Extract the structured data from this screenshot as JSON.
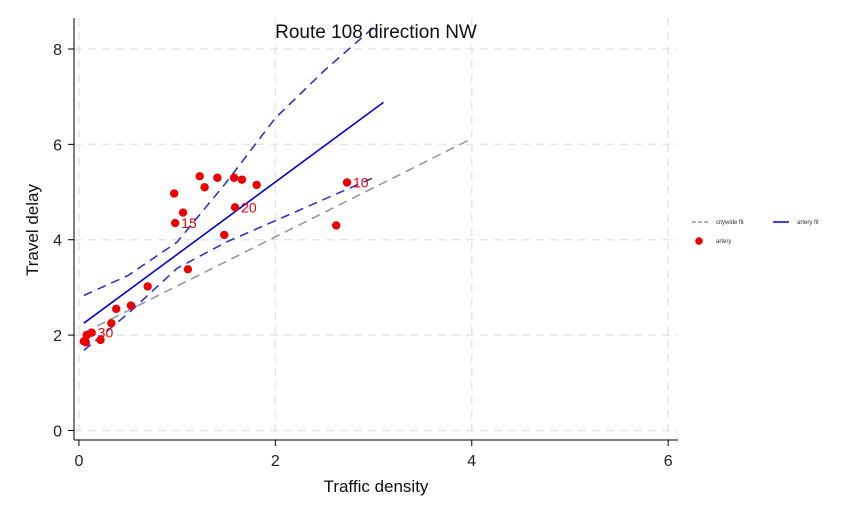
{
  "chart_data": {
    "type": "scatter",
    "title": "Route 108 direction NW",
    "xlabel": "Traffic density",
    "ylabel": "Travel delay",
    "xlim": [
      -0.05,
      6.1
    ],
    "ylim": [
      -0.2,
      8.65
    ],
    "xticks": [
      0,
      2,
      4,
      6
    ],
    "yticks": [
      0,
      2,
      4,
      6,
      8
    ],
    "grid": true,
    "legend_position": "right",
    "colors": {
      "points": "#ee0000",
      "artery_fit": "#0000dd",
      "artery_ci": "#3333cc",
      "citywide_fit": "#999999",
      "grid": "#e6e6e6"
    },
    "series": [
      {
        "name": "artery",
        "kind": "points",
        "x": [
          0.05,
          0.07,
          0.08,
          0.13,
          0.22,
          0.33,
          0.38,
          0.53,
          0.7,
          0.97,
          0.98,
          1.06,
          1.11,
          1.23,
          1.28,
          1.41,
          1.48,
          1.58,
          1.59,
          1.66,
          1.81,
          2.62,
          2.73
        ],
        "y": [
          1.87,
          1.85,
          2.0,
          2.05,
          1.9,
          2.25,
          2.55,
          2.62,
          3.02,
          4.97,
          4.35,
          4.57,
          3.38,
          5.33,
          5.1,
          5.3,
          4.1,
          5.3,
          4.68,
          5.26,
          5.15,
          4.3,
          5.2
        ]
      },
      {
        "name": "artery fit",
        "kind": "line",
        "x": [
          0.05,
          3.1
        ],
        "y": [
          2.25,
          6.88
        ]
      },
      {
        "name": "citywide fit",
        "kind": "dashed-line",
        "x": [
          0.05,
          4.0
        ],
        "y": [
          2.05,
          6.12
        ]
      }
    ],
    "ci_band": {
      "x": [
        0.05,
        0.5,
        1.0,
        1.5,
        2.0,
        2.5,
        3.0
      ],
      "upper": [
        2.83,
        3.25,
        3.95,
        5.2,
        6.55,
        7.55,
        8.45
      ],
      "lower": [
        1.68,
        2.45,
        3.4,
        3.95,
        4.4,
        4.85,
        5.3
      ]
    },
    "annotations": [
      {
        "text": "10",
        "x": 2.73,
        "y": 5.2
      },
      {
        "text": "15",
        "x": 0.98,
        "y": 4.35
      },
      {
        "text": "20",
        "x": 1.59,
        "y": 4.68
      },
      {
        "text": "30",
        "x": 0.13,
        "y": 2.05
      }
    ],
    "legend": [
      {
        "label": "citywide fit",
        "symbol": "dashed-line",
        "color": "#999999"
      },
      {
        "label": "artery fit",
        "symbol": "line",
        "color": "#0000dd"
      },
      {
        "label": "artery",
        "symbol": "dot",
        "color": "#ee0000"
      }
    ]
  }
}
